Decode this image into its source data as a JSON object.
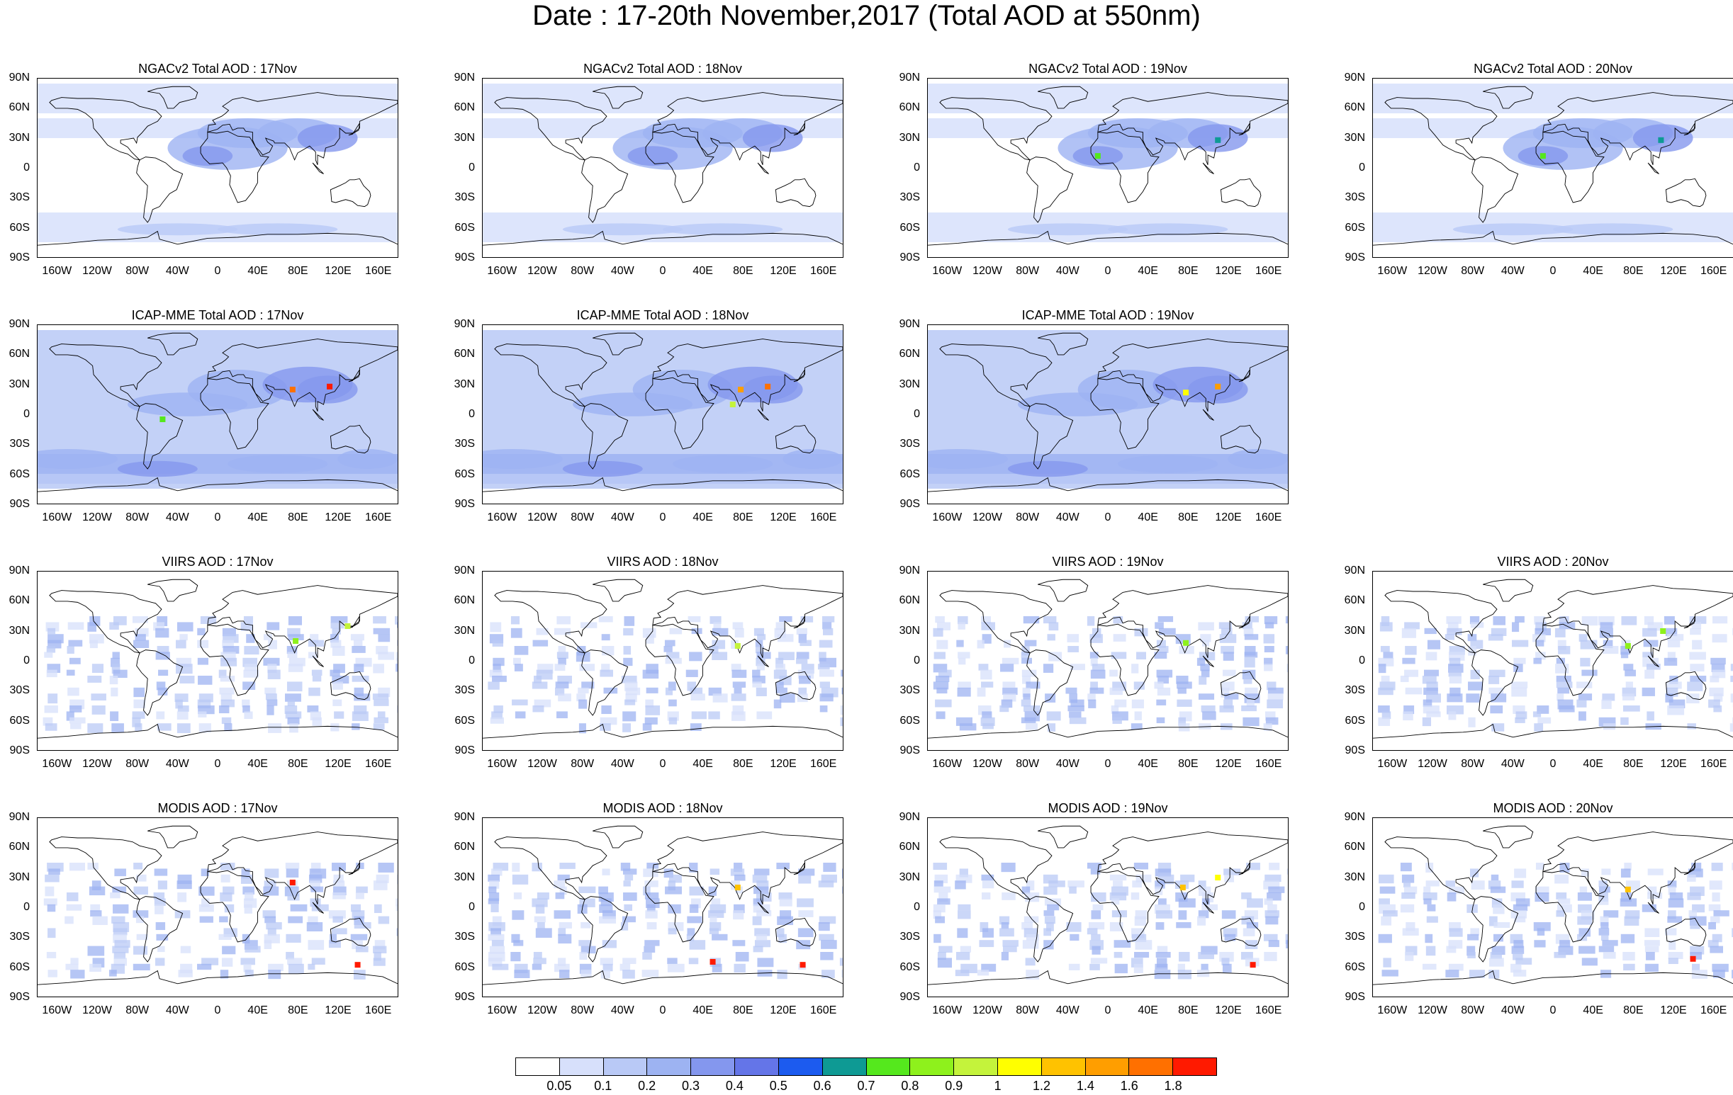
{
  "title": "Date : 17-20th November,2017 (Total AOD at 550nm)",
  "lat_labels": [
    "90N",
    "60N",
    "30N",
    "0",
    "30S",
    "60S",
    "90S"
  ],
  "lon_labels": [
    "160W",
    "120W",
    "80W",
    "40W",
    "0",
    "40E",
    "80E",
    "120E",
    "160E"
  ],
  "panels": [
    {
      "title": "NGACv2 Total AOD : 17Nov",
      "dataset": "NGACv2",
      "style": "model",
      "row": 0,
      "col": 0,
      "hotspots": []
    },
    {
      "title": "NGACv2 Total AOD : 18Nov",
      "dataset": "NGACv2",
      "style": "model",
      "row": 0,
      "col": 1,
      "hotspots": []
    },
    {
      "title": "NGACv2 Total AOD : 19Nov",
      "dataset": "NGACv2",
      "style": "model",
      "row": 0,
      "col": 2,
      "hotspots": [
        {
          "lon": -10,
          "lat": 12,
          "aod": 0.7
        },
        {
          "lon": 110,
          "lat": 28,
          "aod": 0.6
        }
      ]
    },
    {
      "title": "NGACv2 Total AOD : 20Nov",
      "dataset": "NGACv2",
      "style": "model",
      "row": 0,
      "col": 3,
      "hotspots": [
        {
          "lon": -10,
          "lat": 12,
          "aod": 0.7
        },
        {
          "lon": 108,
          "lat": 28,
          "aod": 0.6
        }
      ]
    },
    {
      "title": "ICAP-MME Total AOD : 17Nov",
      "dataset": "ICAP-MME",
      "style": "icap",
      "row": 1,
      "col": 0,
      "hotspots": [
        {
          "lon": 75,
          "lat": 25,
          "aod": 1.6
        },
        {
          "lon": 112,
          "lat": 28,
          "aod": 1.8
        },
        {
          "lon": -55,
          "lat": -5,
          "aod": 0.7
        }
      ]
    },
    {
      "title": "ICAP-MME Total AOD : 18Nov",
      "dataset": "ICAP-MME",
      "style": "icap",
      "row": 1,
      "col": 1,
      "hotspots": [
        {
          "lon": 78,
          "lat": 25,
          "aod": 1.4
        },
        {
          "lon": 105,
          "lat": 28,
          "aod": 1.6
        },
        {
          "lon": 70,
          "lat": 10,
          "aod": 0.9
        }
      ]
    },
    {
      "title": "ICAP-MME Total AOD : 19Nov",
      "dataset": "ICAP-MME",
      "style": "icap",
      "row": 1,
      "col": 2,
      "hotspots": [
        {
          "lon": 78,
          "lat": 22,
          "aod": 1.0
        },
        {
          "lon": 110,
          "lat": 28,
          "aod": 1.4
        }
      ]
    },
    {
      "title": "VIIRS AOD : 17Nov",
      "dataset": "VIIRS",
      "style": "sat",
      "row": 2,
      "col": 0,
      "hotspots": [
        {
          "lon": 78,
          "lat": 20,
          "aod": 0.8
        },
        {
          "lon": 130,
          "lat": 35,
          "aod": 0.9
        }
      ]
    },
    {
      "title": "VIIRS AOD : 18Nov",
      "dataset": "VIIRS",
      "style": "sat",
      "row": 2,
      "col": 1,
      "hotspots": [
        {
          "lon": 75,
          "lat": 15,
          "aod": 0.9
        }
      ]
    },
    {
      "title": "VIIRS AOD : 19Nov",
      "dataset": "VIIRS",
      "style": "sat",
      "row": 2,
      "col": 2,
      "hotspots": [
        {
          "lon": 78,
          "lat": 18,
          "aod": 0.8
        }
      ]
    },
    {
      "title": "VIIRS AOD : 20Nov",
      "dataset": "VIIRS",
      "style": "sat",
      "row": 2,
      "col": 3,
      "hotspots": [
        {
          "lon": 75,
          "lat": 15,
          "aod": 0.8
        },
        {
          "lon": 110,
          "lat": 30,
          "aod": 0.8
        }
      ]
    },
    {
      "title": "MODIS AOD : 17Nov",
      "dataset": "MODIS",
      "style": "sat",
      "row": 3,
      "col": 0,
      "hotspots": [
        {
          "lon": 75,
          "lat": 25,
          "aod": 1.8
        },
        {
          "lon": 140,
          "lat": -58,
          "aod": 1.8
        }
      ]
    },
    {
      "title": "MODIS AOD : 18Nov",
      "dataset": "MODIS",
      "style": "sat",
      "row": 3,
      "col": 1,
      "hotspots": [
        {
          "lon": 75,
          "lat": 20,
          "aod": 1.2
        },
        {
          "lon": 50,
          "lat": -55,
          "aod": 1.8
        },
        {
          "lon": 140,
          "lat": -58,
          "aod": 1.8
        }
      ]
    },
    {
      "title": "MODIS AOD : 19Nov",
      "dataset": "MODIS",
      "style": "sat",
      "row": 3,
      "col": 2,
      "hotspots": [
        {
          "lon": 75,
          "lat": 20,
          "aod": 1.2
        },
        {
          "lon": 110,
          "lat": 30,
          "aod": 1.0
        },
        {
          "lon": 145,
          "lat": -58,
          "aod": 1.8
        }
      ]
    },
    {
      "title": "MODIS AOD : 20Nov",
      "dataset": "MODIS",
      "style": "sat",
      "row": 3,
      "col": 3,
      "hotspots": [
        {
          "lon": 75,
          "lat": 18,
          "aod": 1.2
        },
        {
          "lon": 140,
          "lat": -52,
          "aod": 1.8
        }
      ]
    }
  ],
  "colorbar": {
    "labels": [
      "0.05",
      "0.1",
      "0.2",
      "0.3",
      "0.4",
      "0.5",
      "0.6",
      "0.7",
      "0.8",
      "0.9",
      "1",
      "1.2",
      "1.4",
      "1.6",
      "1.8"
    ],
    "colors": [
      "#ffffff",
      "#d7e0fb",
      "#b9c9f6",
      "#9db3f2",
      "#8497ee",
      "#6475e8",
      "#1c5bef",
      "#0e9a94",
      "#55e81d",
      "#8ef11c",
      "#c4f33b",
      "#ffff00",
      "#ffc200",
      "#ff9e00",
      "#ff7000",
      "#ff1a00"
    ]
  }
}
